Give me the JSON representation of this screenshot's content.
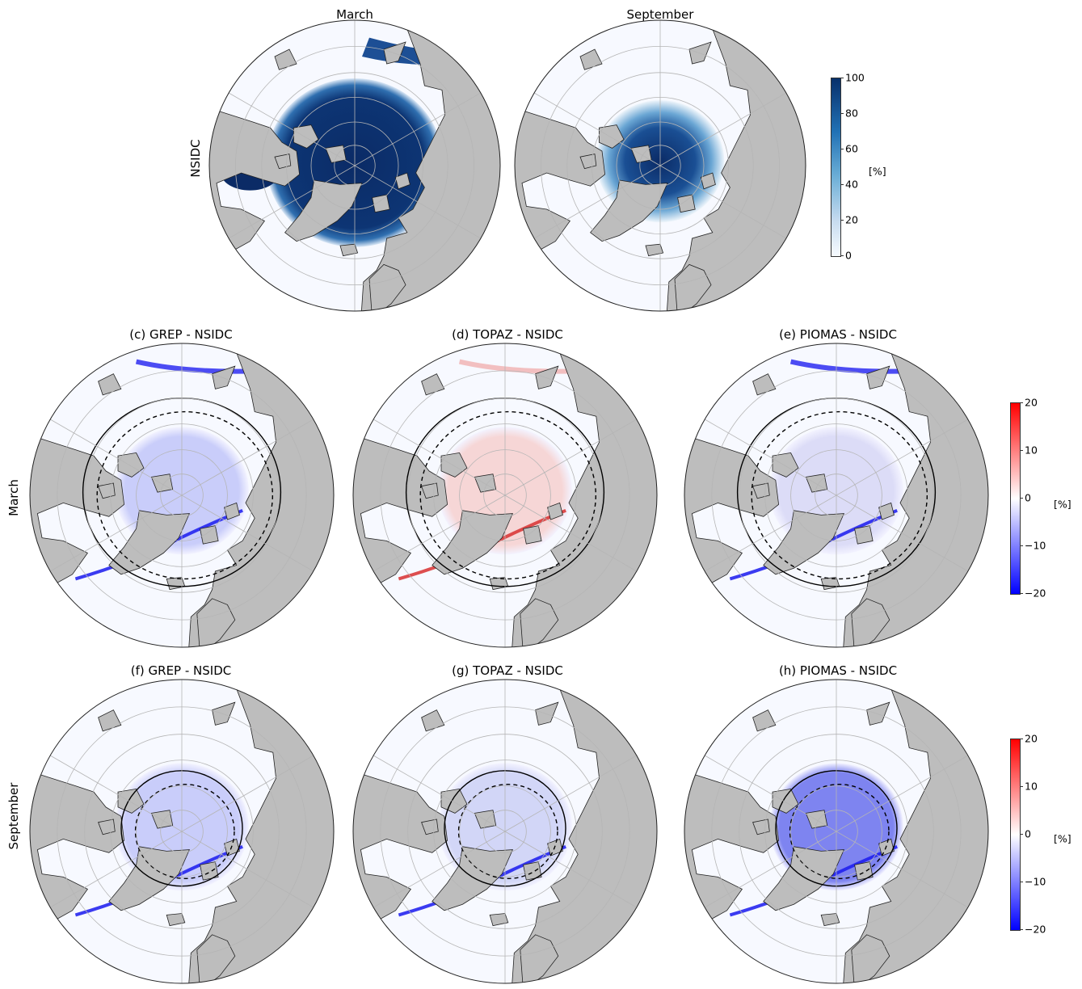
{
  "top_row": {
    "row_label": "NSIDC",
    "panels": [
      {
        "title": "March",
        "kind": "conc",
        "season": "march"
      },
      {
        "title": "September",
        "kind": "conc",
        "season": "september"
      }
    ]
  },
  "rows": [
    {
      "row_label": "March",
      "panels": [
        {
          "title": "(c) GREP - NSIDC",
          "kind": "diff",
          "season": "march",
          "bias": "neg"
        },
        {
          "title": "(d) TOPAZ - NSIDC",
          "kind": "diff",
          "season": "march",
          "bias": "pos"
        },
        {
          "title": "(e) PIOMAS - NSIDC",
          "kind": "diff",
          "season": "march",
          "bias": "mixed"
        }
      ]
    },
    {
      "row_label": "September",
      "panels": [
        {
          "title": "(f) GREP - NSIDC",
          "kind": "diff",
          "season": "september",
          "bias": "neg"
        },
        {
          "title": "(g) TOPAZ - NSIDC",
          "kind": "diff",
          "season": "september",
          "bias": "negweak"
        },
        {
          "title": "(h) PIOMAS - NSIDC",
          "kind": "diff",
          "season": "september",
          "bias": "negstrong"
        }
      ]
    }
  ],
  "colorbars": {
    "concentration": {
      "ticks": [
        "100",
        "80",
        "60",
        "40",
        "20",
        "0"
      ],
      "unit": "[%]",
      "colors": [
        "#f7fbff",
        "#c6dbef",
        "#6baed6",
        "#2171b5",
        "#08306b"
      ]
    },
    "difference_march": {
      "ticks": [
        "20",
        "10",
        "0",
        "−10",
        "−20"
      ],
      "unit": "[%]",
      "colors": [
        "#0000ff",
        "#ffffff",
        "#ff0000"
      ]
    },
    "difference_september": {
      "ticks": [
        "20",
        "10",
        "0",
        "−10",
        "−20"
      ],
      "unit": "[%]",
      "colors": [
        "#0000ff",
        "#ffffff",
        "#ff0000"
      ]
    }
  },
  "colors": {
    "land": "#bdbdbd",
    "ocean": "#f7f9ff",
    "ice_high": "#0b2b66",
    "grid": "#b5b5b5"
  }
}
